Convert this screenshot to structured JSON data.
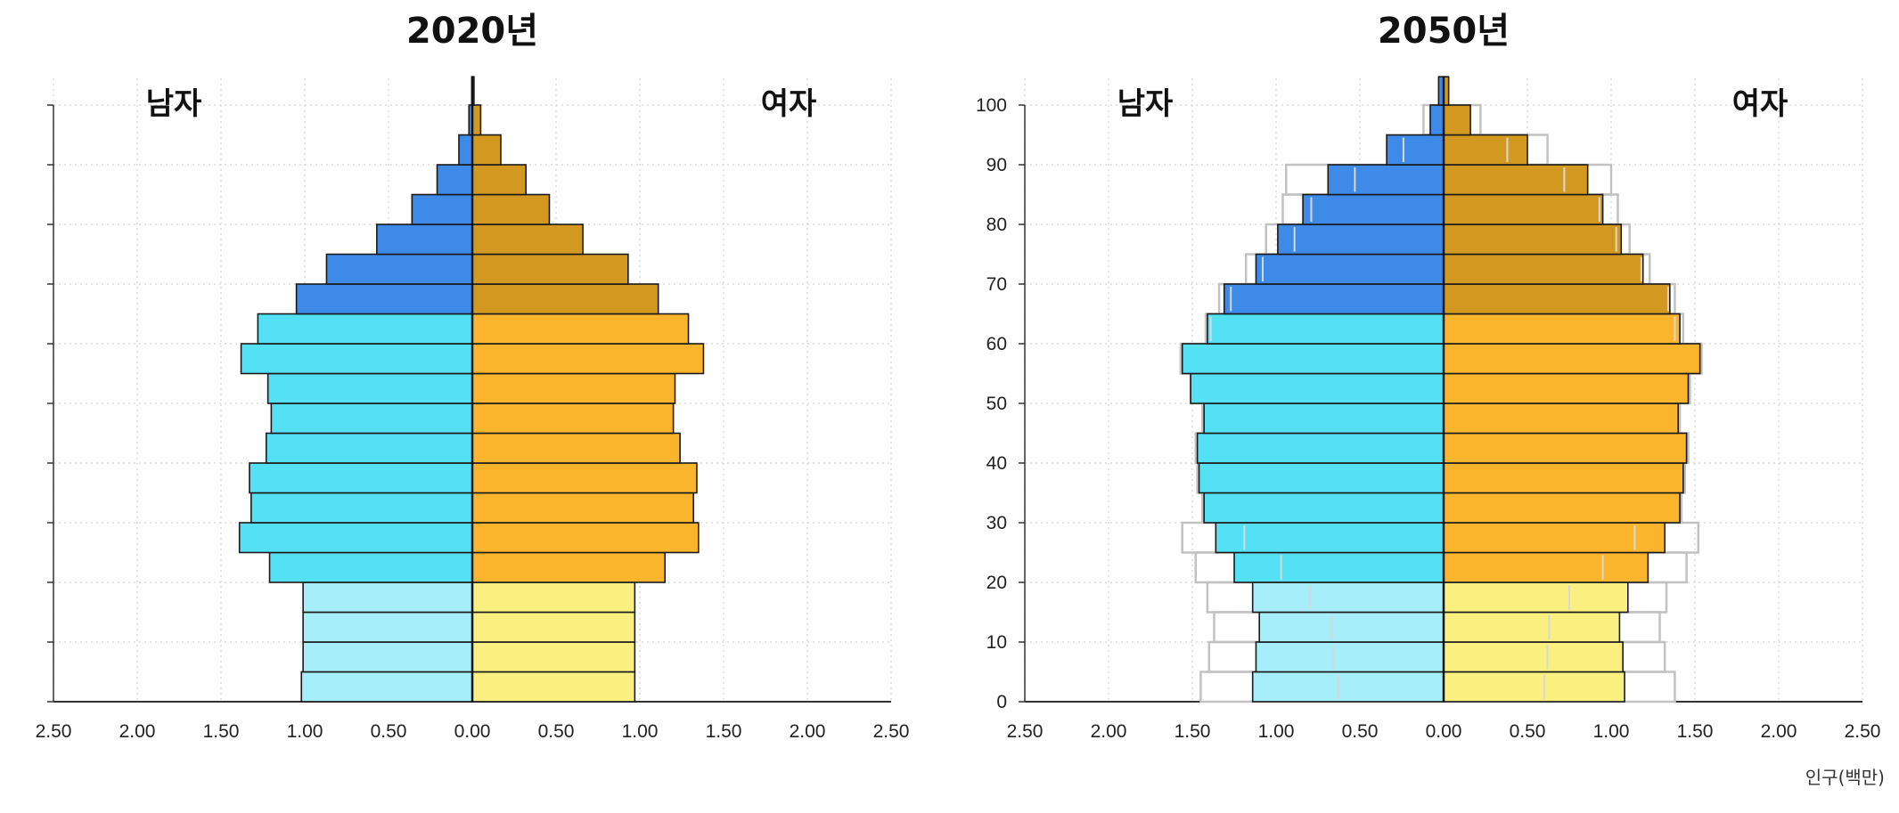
{
  "chart_data": [
    {
      "type": "bar",
      "subtype": "population-pyramid",
      "title": "2020년",
      "left_label": "남자",
      "right_label": "여자",
      "xticks": [
        "2.50",
        "2.00",
        "1.50",
        "1.00",
        "0.50",
        "0.00",
        "0.50",
        "1.00",
        "1.50",
        "2.00",
        "2.50"
      ],
      "xlim": [
        -2.5,
        2.5
      ],
      "ylim": [
        0,
        100
      ],
      "yticks": [],
      "grid": true,
      "age_groups": [
        "0-4",
        "5-9",
        "10-14",
        "15-19",
        "20-24",
        "25-29",
        "30-34",
        "35-39",
        "40-44",
        "45-49",
        "50-54",
        "55-59",
        "60-64",
        "65-69",
        "70-74",
        "75-79",
        "80-84",
        "85-89",
        "90-94",
        "95-99",
        "100+"
      ],
      "male": [
        1.02,
        1.01,
        1.01,
        1.01,
        1.21,
        1.39,
        1.32,
        1.33,
        1.23,
        1.2,
        1.22,
        1.38,
        1.28,
        1.05,
        0.87,
        0.57,
        0.36,
        0.21,
        0.08,
        0.02,
        0.003
      ],
      "female": [
        0.97,
        0.97,
        0.97,
        0.97,
        1.15,
        1.35,
        1.32,
        1.34,
        1.24,
        1.2,
        1.21,
        1.38,
        1.29,
        1.11,
        0.93,
        0.66,
        0.46,
        0.32,
        0.17,
        0.05,
        0.01
      ],
      "colors": {
        "male_young": "#a6eefa",
        "male_working": "#55e1f5",
        "male_old": "#3d8ae8",
        "female_young": "#faf080",
        "female_working": "#fbb52d",
        "female_old": "#d3981f"
      }
    },
    {
      "type": "bar",
      "subtype": "population-pyramid",
      "title": "2050년",
      "left_label": "남자",
      "right_label": "여자",
      "xticks": [
        "2.50",
        "2.00",
        "1.50",
        "1.00",
        "0.50",
        "0.00",
        "0.50",
        "1.00",
        "1.50",
        "2.00",
        "2.50"
      ],
      "xlim": [
        -2.5,
        2.5
      ],
      "ylim": [
        0,
        100
      ],
      "yticks": [
        "0",
        "10",
        "20",
        "30",
        "40",
        "50",
        "60",
        "70",
        "80",
        "90",
        "100"
      ],
      "grid": true,
      "unit_label": "인구(백만)",
      "age_groups": [
        "0-4",
        "5-9",
        "10-14",
        "15-19",
        "20-24",
        "25-29",
        "30-34",
        "35-39",
        "40-44",
        "45-49",
        "50-54",
        "55-59",
        "60-64",
        "65-69",
        "70-74",
        "75-79",
        "80-84",
        "85-89",
        "90-94",
        "95-99",
        "100+"
      ],
      "male": [
        1.14,
        1.12,
        1.1,
        1.14,
        1.25,
        1.36,
        1.43,
        1.46,
        1.47,
        1.43,
        1.51,
        1.56,
        1.41,
        1.31,
        1.12,
        0.99,
        0.84,
        0.69,
        0.34,
        0.08,
        0.03
      ],
      "female": [
        1.08,
        1.07,
        1.05,
        1.1,
        1.22,
        1.32,
        1.41,
        1.43,
        1.45,
        1.4,
        1.46,
        1.53,
        1.41,
        1.35,
        1.19,
        1.06,
        0.95,
        0.86,
        0.5,
        0.16,
        0.03
      ],
      "male_outline": [
        1.45,
        1.4,
        1.37,
        1.41,
        1.48,
        1.56,
        1.44,
        1.47,
        1.48,
        1.44,
        1.51,
        1.57,
        1.42,
        1.34,
        1.18,
        1.06,
        0.96,
        0.94,
        0.12,
        0.12,
        0.03
      ],
      "female_outline": [
        1.38,
        1.32,
        1.29,
        1.33,
        1.45,
        1.52,
        1.42,
        1.44,
        1.46,
        1.41,
        1.47,
        1.54,
        1.43,
        1.38,
        1.23,
        1.11,
        1.04,
        1.0,
        0.62,
        0.22,
        0.03
      ],
      "male_inner_line": [
        0.63,
        0.66,
        0.67,
        0.8,
        0.97,
        1.19,
        null,
        null,
        null,
        null,
        null,
        null,
        1.39,
        1.27,
        1.08,
        0.89,
        0.79,
        0.53,
        0.24,
        null,
        null
      ],
      "female_inner_line": [
        0.6,
        0.62,
        0.63,
        0.75,
        0.95,
        1.14,
        null,
        null,
        null,
        null,
        null,
        null,
        1.38,
        1.34,
        1.18,
        1.03,
        0.93,
        0.72,
        0.38,
        null,
        null
      ]
    }
  ]
}
